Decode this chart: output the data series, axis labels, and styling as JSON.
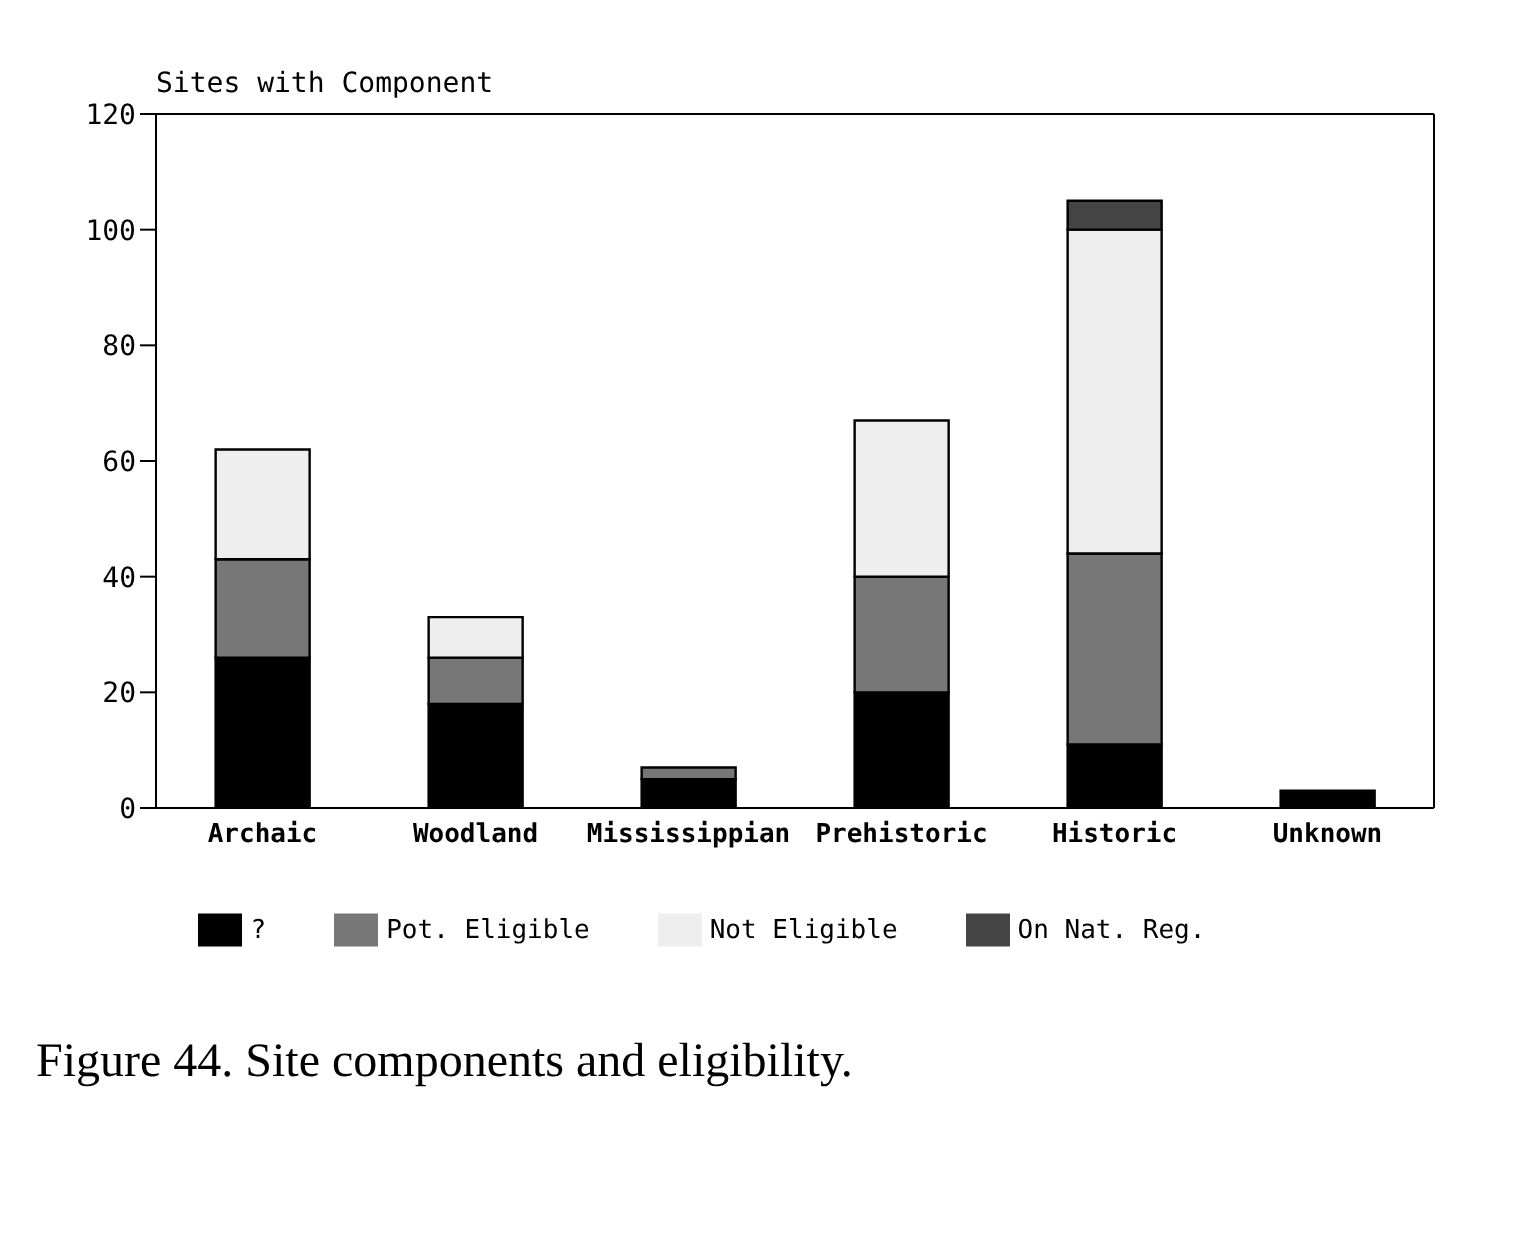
{
  "chart_data": {
    "type": "bar",
    "stacked": true,
    "ylabel": "Sites with Component",
    "categories": [
      "Archaic",
      "Woodland",
      "Mississippian",
      "Prehistoric",
      "Historic",
      "Unknown"
    ],
    "series": [
      {
        "name": "?",
        "color": "#000000",
        "values": [
          26,
          18,
          5,
          20,
          11,
          3
        ]
      },
      {
        "name": "Pot. Eligible",
        "color": "#777777",
        "values": [
          17,
          8,
          2,
          20,
          33,
          null
        ]
      },
      {
        "name": "Not Eligible",
        "color": "#eeeeee",
        "values": [
          19,
          7,
          null,
          27,
          56,
          null
        ]
      },
      {
        "name": "On Nat. Reg.",
        "color": "#444444",
        "values": [
          null,
          null,
          null,
          null,
          5,
          null
        ]
      }
    ],
    "ylim": [
      0,
      120
    ],
    "yticks": [
      0,
      20,
      40,
      60,
      80,
      100,
      120
    ],
    "grid": false,
    "legend": "bottom",
    "annotations": [
      "Figure 44. Site components and eligibility."
    ]
  }
}
